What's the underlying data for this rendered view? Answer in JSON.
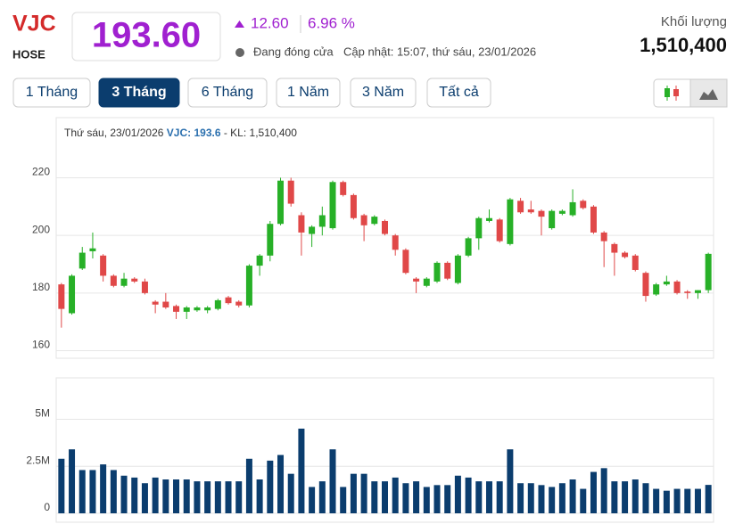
{
  "header": {
    "symbol": "VJC",
    "exchange": "HOSE",
    "price": "193.60",
    "change": "12.60",
    "change_pct": "6.96 %",
    "status": "Đang đóng cửa",
    "updated": "Cập nhật: 15:07, thứ sáu, 23/01/2026",
    "volume_label": "Khối lượng",
    "volume": "1,510,400"
  },
  "buttons": [
    "1 Tháng",
    "3 Tháng",
    "6 Tháng",
    "1 Năm",
    "3 Năm",
    "Tất cả"
  ],
  "info": {
    "date": "Thứ sáu, 23/01/2026",
    "quote": "VJC: 193.6",
    "volume": "- KL: 1,510,400"
  },
  "chart_data": [
    {
      "type": "candlestick",
      "up_color": "#27b027",
      "down_color": "#e04848",
      "grid": true,
      "ylim": [
        158,
        239
      ],
      "yticks": [
        160,
        180,
        200,
        220
      ],
      "series": [
        {
          "name": "VJC",
          "open": [
            183,
            173,
            188.5,
            194.5,
            193,
            186,
            182.5,
            185,
            184,
            177,
            177,
            175.5,
            173.5,
            174,
            174,
            174.5,
            178.5,
            177,
            175.7,
            189.5,
            193,
            204,
            219,
            207,
            200.5,
            203,
            202.5,
            218.5,
            214,
            207,
            204,
            205,
            200,
            195,
            185,
            182.5,
            184,
            190.5,
            183.5,
            193,
            199,
            205,
            205.5,
            197,
            212,
            209,
            208.5,
            202.5,
            207.5,
            207,
            212,
            210,
            201,
            197,
            194,
            193,
            187,
            179.5,
            183,
            184,
            180.5,
            180,
            181
          ],
          "high": [
            183.5,
            186.5,
            196,
            201,
            193.5,
            186.5,
            187,
            185.5,
            185,
            177.5,
            180,
            176,
            175.5,
            175.5,
            175.5,
            178,
            179,
            177.5,
            190,
            193.5,
            205,
            220,
            220,
            208,
            203.5,
            210,
            219,
            219,
            214.5,
            207.5,
            207,
            205.5,
            200.5,
            195.5,
            185.5,
            185.5,
            191,
            191,
            193.5,
            199.5,
            206.5,
            209,
            206,
            213,
            213,
            212,
            209,
            209,
            209,
            216,
            212.5,
            210.5,
            201.5,
            197.5,
            194.5,
            193.5,
            187.5,
            183.5,
            186,
            184.5,
            181,
            181,
            194
          ],
          "low": [
            168,
            172.5,
            188,
            192,
            184,
            182,
            182,
            183.5,
            179.5,
            173,
            174.5,
            171,
            171,
            173.5,
            173,
            174,
            176,
            175,
            175,
            186,
            191,
            203.5,
            210,
            193,
            196,
            200,
            202,
            213.5,
            205.5,
            198,
            203.5,
            200,
            193,
            186.5,
            180,
            182,
            183.5,
            184.5,
            183,
            192.5,
            195,
            204.5,
            197.5,
            196.5,
            207.5,
            207.5,
            200,
            202,
            207,
            206.5,
            209,
            200.5,
            189,
            186,
            192,
            187.5,
            177,
            179,
            182.5,
            179.5,
            178,
            178,
            180
          ],
          "close": [
            174.5,
            186,
            194,
            195.5,
            186,
            182.5,
            185,
            184,
            180,
            176,
            175,
            173.5,
            175,
            175,
            175,
            177.5,
            176.5,
            175.7,
            189.5,
            193,
            204,
            219,
            211,
            201,
            203,
            207,
            218.5,
            214,
            206,
            203.5,
            206.5,
            200.5,
            195,
            187,
            184,
            185,
            190.5,
            185,
            193,
            199,
            206,
            206,
            198,
            212.5,
            208,
            208,
            206.5,
            208.5,
            208.5,
            211.5,
            209.5,
            201,
            198,
            194,
            192.5,
            188,
            179,
            183,
            184,
            180,
            180,
            181,
            193.6
          ]
        }
      ]
    },
    {
      "type": "bar",
      "color": "#0b3d6e",
      "grid": true,
      "ylim": [
        0,
        7.2
      ],
      "yticks": [
        0,
        {
          "value": 2.5,
          "label": "2.5M"
        },
        {
          "value": 5,
          "label": "5M"
        }
      ],
      "values": [
        2.9,
        3.4,
        2.3,
        2.3,
        2.6,
        2.3,
        2.0,
        1.9,
        1.6,
        1.9,
        1.8,
        1.8,
        1.8,
        1.7,
        1.7,
        1.7,
        1.7,
        1.7,
        2.9,
        1.8,
        2.8,
        3.1,
        2.1,
        4.5,
        1.4,
        1.7,
        3.4,
        1.4,
        2.1,
        2.1,
        1.7,
        1.7,
        1.9,
        1.6,
        1.7,
        1.4,
        1.5,
        1.5,
        2.0,
        1.9,
        1.7,
        1.7,
        1.7,
        3.4,
        1.6,
        1.6,
        1.5,
        1.4,
        1.6,
        1.8,
        1.3,
        2.2,
        2.4,
        1.7,
        1.7,
        1.8,
        1.6,
        1.3,
        1.2,
        1.3,
        1.3,
        1.3,
        1.51
      ]
    }
  ]
}
